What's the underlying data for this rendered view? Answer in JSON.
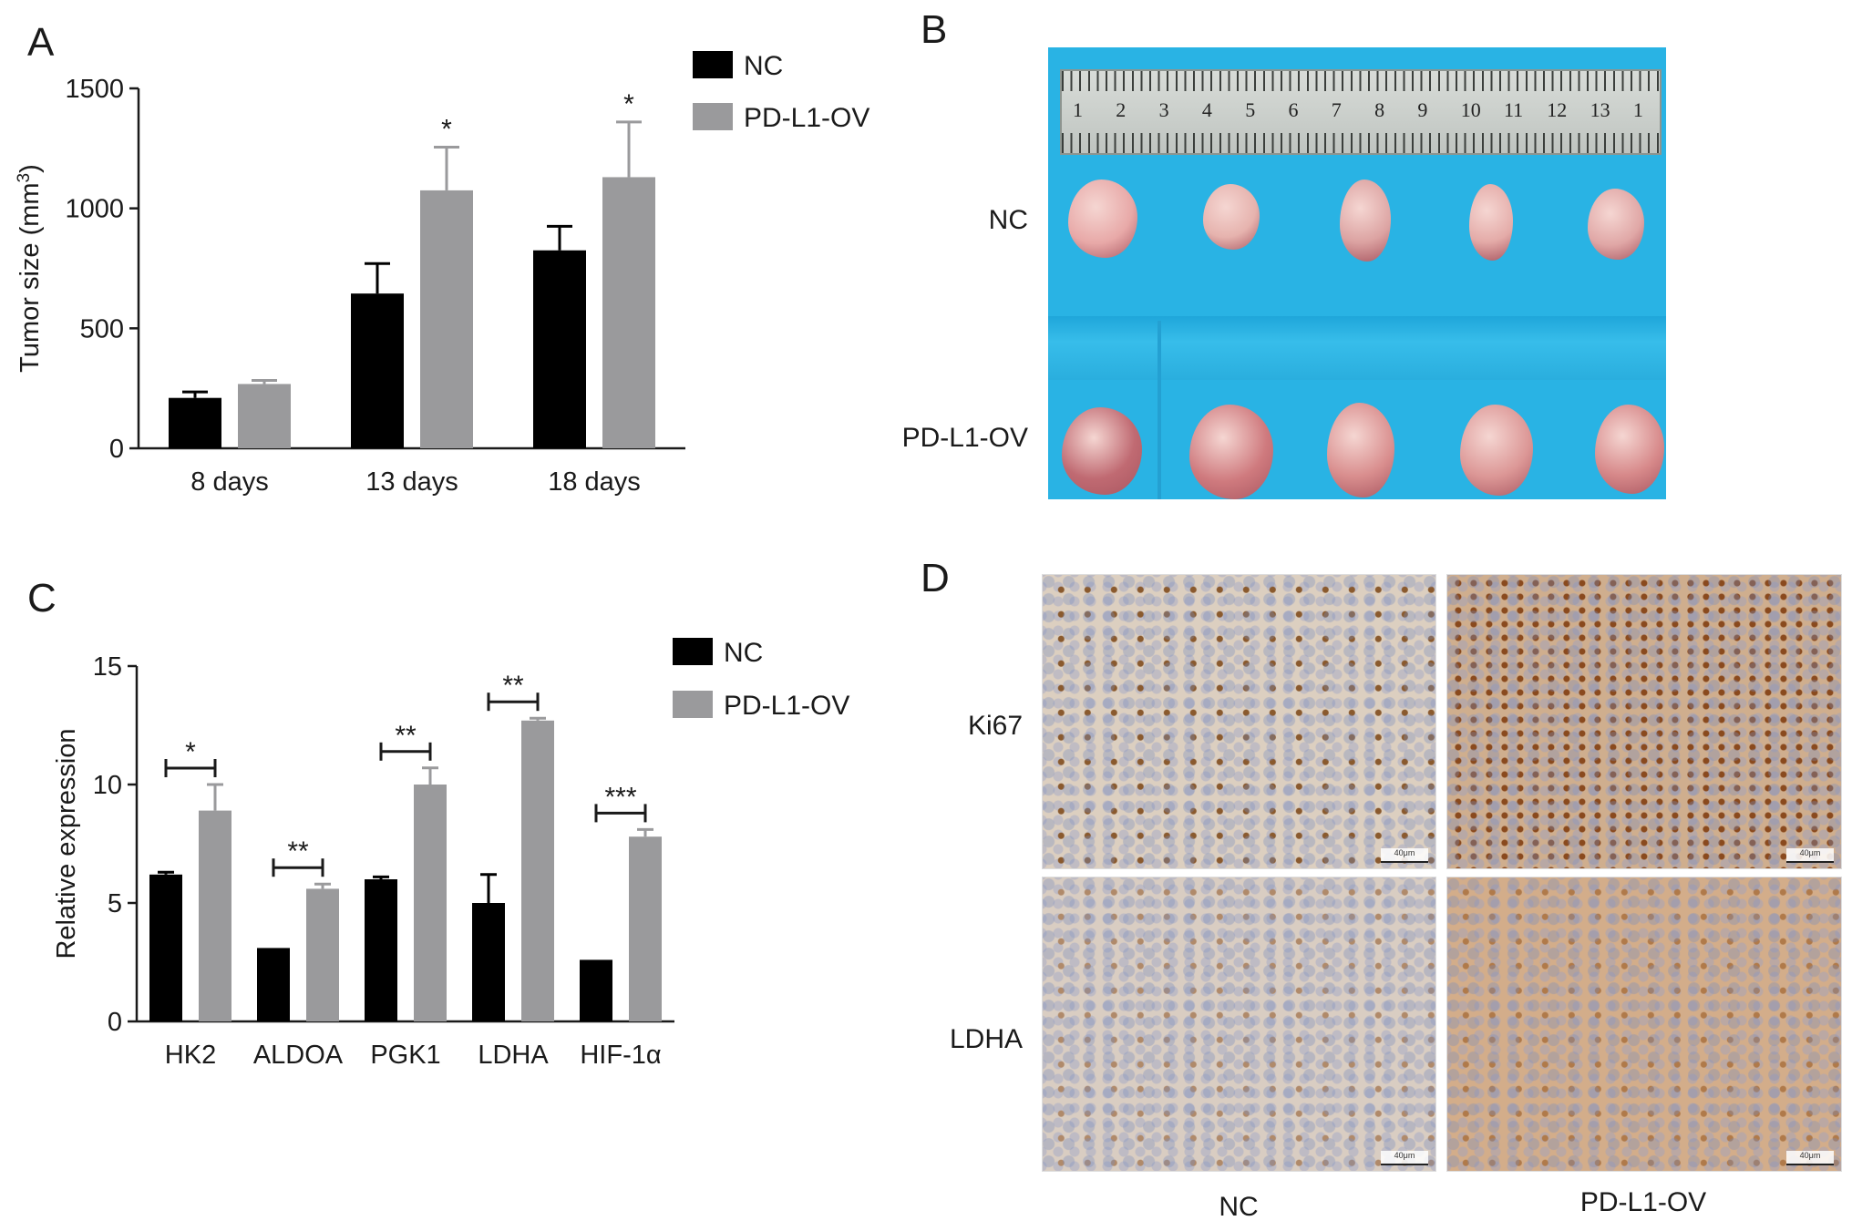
{
  "panels": {
    "A": "A",
    "B": "B",
    "C": "C",
    "D": "D"
  },
  "colors": {
    "nc": "#000000",
    "pdl1": "#9a9a9c",
    "axis": "#1a1a1a",
    "blue_drape": "#29b3e4"
  },
  "chart_data": [
    {
      "type": "bar",
      "panel": "A",
      "categories": [
        "8 days",
        "13 days",
        "18 days"
      ],
      "series": [
        {
          "name": "NC",
          "values": [
            210,
            645,
            825
          ],
          "errors": [
            25,
            125,
            100
          ]
        },
        {
          "name": "PD-L1-OV",
          "values": [
            268,
            1075,
            1130
          ],
          "errors": [
            15,
            180,
            230
          ]
        }
      ],
      "ylabel": "Tumor size (mm3)",
      "ylabel_main": "Tumor size (mm",
      "ylabel_sup": "3",
      "ylabel_close": ")",
      "ylim": [
        0,
        1500
      ],
      "yticks": [
        "0",
        "500",
        "1000",
        "1500"
      ],
      "significance": [
        "",
        "*",
        "*"
      ],
      "legend_position": "top-right"
    },
    {
      "type": "bar",
      "panel": "C",
      "categories": [
        "HK2",
        "ALDOA",
        "PGK1",
        "LDHA",
        "HIF-1α"
      ],
      "series": [
        {
          "name": "NC",
          "values": [
            6.2,
            3.1,
            6.0,
            5.0,
            2.6
          ],
          "errors": [
            0.1,
            0.0,
            0.1,
            1.2,
            0.0
          ]
        },
        {
          "name": "PD-L1-OV",
          "values": [
            8.9,
            5.6,
            10.0,
            12.7,
            7.8
          ],
          "errors": [
            1.1,
            0.2,
            0.7,
            0.1,
            0.3
          ]
        }
      ],
      "ylabel": "Relative expression",
      "ylim": [
        0,
        15
      ],
      "yticks": [
        "0",
        "5",
        "10",
        "15"
      ],
      "significance": [
        "*",
        "**",
        "**",
        "**",
        "***"
      ],
      "legend_position": "top-right"
    }
  ],
  "panelB": {
    "row_labels": [
      "NC",
      "PD-L1-OV"
    ],
    "ruler_numbers": [
      "1",
      "2",
      "3",
      "4",
      "5",
      "6",
      "7",
      "8",
      "9",
      "10",
      "11",
      "12",
      "13",
      "1"
    ]
  },
  "panelD": {
    "row_labels": [
      "Ki67",
      "LDHA"
    ],
    "col_labels": [
      "NC",
      "PD-L1-OV"
    ],
    "scale_bar": "40μm"
  }
}
